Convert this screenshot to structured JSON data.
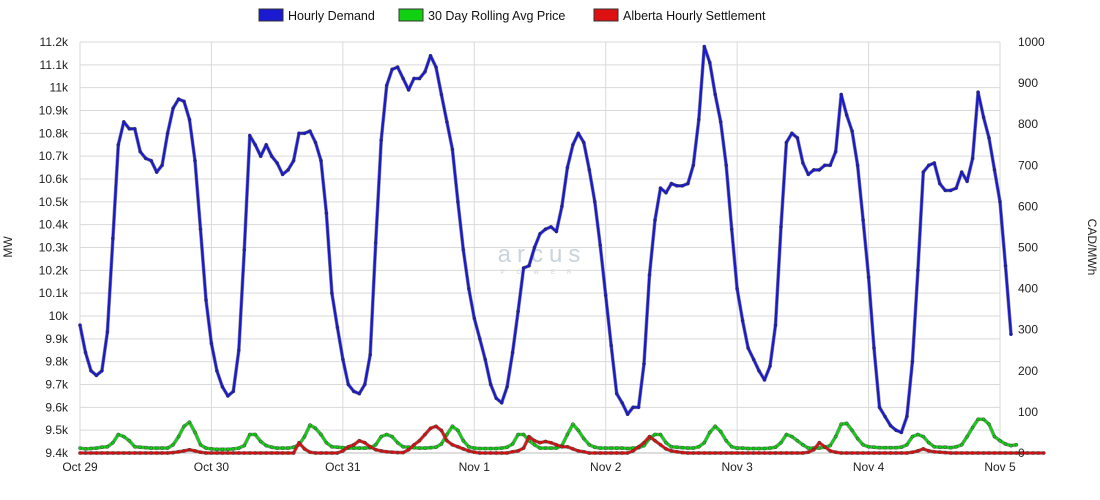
{
  "watermark": {
    "text": "arcus",
    "sub": "POWER"
  },
  "chart_data": {
    "type": "line",
    "grid": true,
    "legend_position": "top-center",
    "x_labels": [
      "Oct 29",
      "Oct 30",
      "Oct 31",
      "Nov 1",
      "Nov 2",
      "Nov 3",
      "Nov 4",
      "Nov 5"
    ],
    "xlabel": "",
    "y_left": {
      "label": "MW",
      "lim": [
        9400,
        11200
      ],
      "ticks": [
        "9.4k",
        "9.5k",
        "9.6k",
        "9.7k",
        "9.8k",
        "9.9k",
        "10k",
        "10.1k",
        "10.2k",
        "10.3k",
        "10.4k",
        "10.5k",
        "10.6k",
        "10.7k",
        "10.8k",
        "10.9k",
        "11k",
        "11.1k",
        "11.2k"
      ]
    },
    "y_right": {
      "label": "CAD/MWh",
      "lim": [
        0,
        1000
      ],
      "ticks": [
        "0",
        "100",
        "200",
        "300",
        "400",
        "500",
        "600",
        "700",
        "800",
        "900",
        "1000"
      ]
    },
    "hours_start_label": "Oct 29",
    "series": [
      {
        "name": "Hourly Demand",
        "color": "#1a1ad0",
        "axis": "left",
        "values": [
          9960,
          9840,
          9760,
          9740,
          9760,
          9930,
          10340,
          10750,
          10850,
          10820,
          10820,
          10720,
          10690,
          10680,
          10630,
          10660,
          10800,
          10910,
          10950,
          10940,
          10860,
          10680,
          10380,
          10070,
          9880,
          9760,
          9690,
          9650,
          9670,
          9850,
          10290,
          10790,
          10750,
          10700,
          10750,
          10700,
          10670,
          10620,
          10640,
          10680,
          10800,
          10800,
          10810,
          10760,
          10680,
          10450,
          10100,
          9950,
          9810,
          9700,
          9670,
          9660,
          9700,
          9830,
          10320,
          10770,
          11010,
          11080,
          11090,
          11040,
          10990,
          11040,
          11040,
          11070,
          11140,
          11090,
          10970,
          10850,
          10730,
          10500,
          10290,
          10120,
          9990,
          9900,
          9810,
          9700,
          9640,
          9620,
          9690,
          9840,
          10020,
          10210,
          10220,
          10300,
          10360,
          10380,
          10390,
          10370,
          10480,
          10650,
          10750,
          10800,
          10760,
          10640,
          10500,
          10310,
          10090,
          9870,
          9660,
          9620,
          9570,
          9600,
          9600,
          9790,
          10180,
          10420,
          10560,
          10540,
          10580,
          10570,
          10570,
          10580,
          10660,
          10860,
          11180,
          11110,
          10970,
          10850,
          10660,
          10380,
          10120,
          9980,
          9860,
          9810,
          9760,
          9720,
          9780,
          9960,
          10390,
          10760,
          10800,
          10780,
          10670,
          10620,
          10640,
          10640,
          10660,
          10660,
          10720,
          10970,
          10880,
          10810,
          10660,
          10420,
          10170,
          9860,
          9600,
          9560,
          9520,
          9500,
          9490,
          9560,
          9800,
          10200,
          10630,
          10660,
          10670,
          10580,
          10550,
          10550,
          10560,
          10630,
          10590,
          10690,
          10980,
          10870,
          10780,
          10640,
          10500,
          10220,
          9920
        ]
      },
      {
        "name": "30 Day Rolling Avg Price",
        "color": "#11d011",
        "axis": "right",
        "values": [
          12,
          10,
          11,
          12,
          14,
          15,
          25,
          45,
          40,
          30,
          15,
          14,
          13,
          12,
          12,
          12,
          12,
          20,
          40,
          65,
          75,
          50,
          20,
          12,
          10,
          9,
          9,
          9,
          10,
          12,
          18,
          45,
          45,
          28,
          18,
          14,
          12,
          12,
          12,
          14,
          20,
          40,
          68,
          60,
          45,
          25,
          15,
          14,
          13,
          12,
          12,
          12,
          12,
          13,
          20,
          40,
          45,
          40,
          25,
          15,
          14,
          13,
          12,
          12,
          13,
          14,
          22,
          45,
          65,
          55,
          30,
          15,
          12,
          11,
          11,
          11,
          11,
          12,
          14,
          22,
          45,
          45,
          30,
          20,
          12,
          12,
          12,
          12,
          18,
          45,
          70,
          55,
          35,
          20,
          14,
          12,
          12,
          12,
          12,
          12,
          11,
          12,
          13,
          18,
          35,
          45,
          45,
          25,
          15,
          14,
          13,
          12,
          12,
          15,
          25,
          50,
          65,
          52,
          30,
          15,
          12,
          12,
          11,
          11,
          11,
          11,
          12,
          14,
          25,
          45,
          40,
          30,
          20,
          12,
          12,
          12,
          14,
          18,
          40,
          70,
          72,
          55,
          35,
          20,
          15,
          14,
          13,
          13,
          13,
          13,
          14,
          20,
          40,
          45,
          40,
          25,
          15,
          14,
          14,
          13,
          15,
          20,
          40,
          62,
          82,
          82,
          70,
          40,
          30,
          22,
          18,
          20
        ]
      },
      {
        "name": "Alberta Hourly Settlement",
        "color": "#dd1111",
        "axis": "right",
        "values": [
          0,
          0,
          0,
          0,
          0,
          0,
          0,
          0,
          0,
          0,
          0,
          0,
          0,
          0,
          0,
          0,
          0,
          1,
          3,
          5,
          8,
          5,
          2,
          0,
          0,
          0,
          0,
          0,
          0,
          0,
          0,
          0,
          0,
          0,
          0,
          0,
          0,
          0,
          0,
          0,
          25,
          10,
          2,
          0,
          0,
          0,
          0,
          0,
          5,
          15,
          20,
          30,
          25,
          15,
          8,
          5,
          3,
          2,
          1,
          1,
          8,
          20,
          30,
          45,
          60,
          65,
          55,
          30,
          20,
          15,
          10,
          5,
          2,
          0,
          0,
          0,
          0,
          0,
          0,
          3,
          5,
          12,
          40,
          30,
          25,
          28,
          25,
          20,
          15,
          15,
          10,
          5,
          3,
          0,
          0,
          0,
          0,
          0,
          0,
          0,
          0,
          5,
          15,
          25,
          40,
          30,
          20,
          10,
          5,
          3,
          1,
          0,
          0,
          0,
          0,
          0,
          0,
          0,
          0,
          0,
          0,
          0,
          0,
          0,
          0,
          0,
          0,
          0,
          0,
          0,
          0,
          0,
          0,
          2,
          8,
          25,
          15,
          5,
          2,
          0,
          0,
          0,
          0,
          0,
          0,
          0,
          0,
          0,
          0,
          0,
          0,
          0,
          2,
          5,
          10,
          5,
          3,
          2,
          1,
          0,
          0,
          0,
          0,
          0,
          0,
          0,
          0,
          0,
          0,
          0,
          0,
          0,
          0,
          0,
          0,
          0,
          0
        ]
      }
    ]
  }
}
